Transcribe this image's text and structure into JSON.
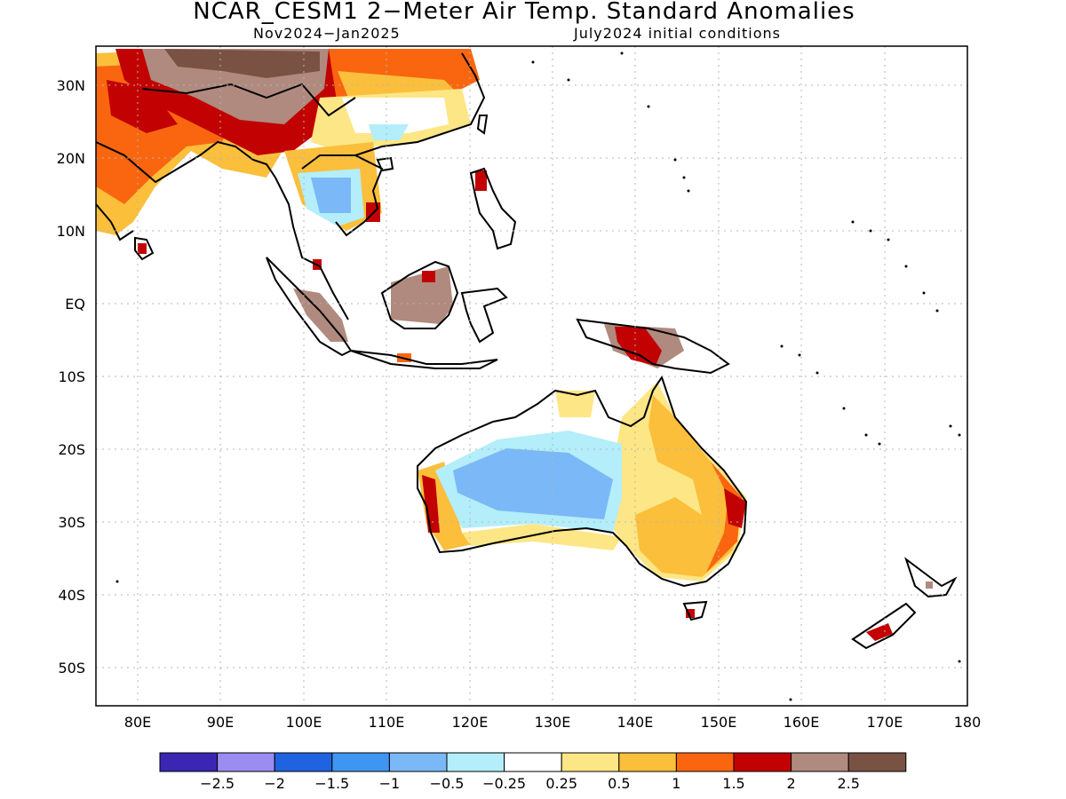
{
  "title": "NCAR_CESM1 2−Meter Air Temp. Standard Anomalies",
  "season": "Nov2024−Jan2025",
  "initial_conditions": "July2024 initial conditions",
  "lat_labels": [
    "30N",
    "20N",
    "10N",
    "EQ",
    "10S",
    "20S",
    "30S",
    "40S",
    "50S"
  ],
  "lon_labels": [
    "80E",
    "90E",
    "100E",
    "110E",
    "120E",
    "130E",
    "140E",
    "150E",
    "160E",
    "170E",
    "180"
  ],
  "colorbar": {
    "colors": [
      "#3a26b3",
      "#9b8cf2",
      "#1f63e0",
      "#3f95f2",
      "#7ab8f7",
      "#b3eefa",
      "#ffffff",
      "#fde685",
      "#fbbf3c",
      "#f9660f",
      "#c20202",
      "#b08a7e",
      "#7a5243"
    ],
    "labels": [
      "−2.5",
      "−2",
      "−1.5",
      "−1",
      "−0.5",
      "−0.25",
      "0.25",
      "0.5",
      "1",
      "1.5",
      "2",
      "2.5"
    ]
  },
  "anomaly_regions": [
    {
      "name": "india",
      "color": "#fbbf3c"
    },
    {
      "name": "india-core",
      "color": "#f9660f"
    },
    {
      "name": "tibet",
      "color": "#c20202"
    },
    {
      "name": "tibet-high",
      "color": "#b08a7e"
    },
    {
      "name": "tibet-max",
      "color": "#7a5243"
    },
    {
      "name": "china-south",
      "color": "#fde685"
    },
    {
      "name": "indochina-cool",
      "color": "#7ab8f7"
    },
    {
      "name": "borneo",
      "color": "#b08a7e"
    },
    {
      "name": "new-guinea",
      "color": "#c20202"
    },
    {
      "name": "australia-interior",
      "color": "#7ab8f7"
    },
    {
      "name": "australia-east",
      "color": "#fbbf3c"
    },
    {
      "name": "australia-southeast",
      "color": "#f9660f"
    },
    {
      "name": "new-zealand",
      "color": "#c20202"
    }
  ]
}
